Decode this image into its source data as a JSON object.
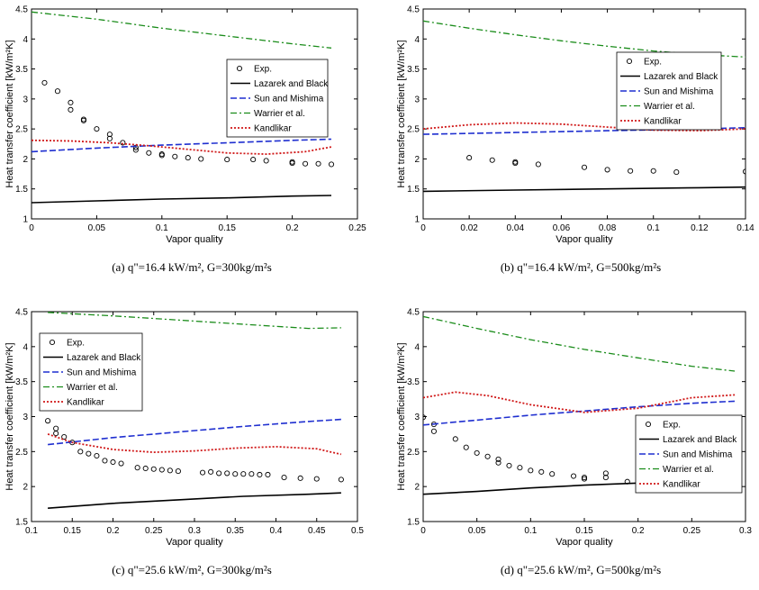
{
  "colors": {
    "exp": "#000000",
    "lazarek": "#000000",
    "sun": "#1f2fd0",
    "warrier": "#1a8c1a",
    "kandlikar": "#d01818"
  },
  "chart_data": [
    {
      "type": "line",
      "panel": "a",
      "caption": "(a)  q\"=16.4  kW/m², G=300kg/m²s",
      "xlabel": "Vapor quality",
      "ylabel": "Heat transfer coefficient [kW/m²K]",
      "xlim": [
        0,
        0.25
      ],
      "ylim": [
        1,
        4.5
      ],
      "xticks": [
        0,
        0.05,
        0.1,
        0.15,
        0.2,
        0.25
      ],
      "xtick_labels": [
        "0",
        "0.05",
        "0.1",
        "0.15",
        "0.2",
        "0.25"
      ],
      "yticks": [
        1,
        1.5,
        2,
        2.5,
        3,
        3.5,
        4,
        4.5
      ],
      "ytick_labels": [
        "1",
        "1.5",
        "2",
        "2.5",
        "3",
        "3.5",
        "4",
        "4.5"
      ],
      "legend_position": "right-middle",
      "series": [
        {
          "name": "Exp.",
          "style": "markers",
          "x": [
            0.01,
            0.02,
            0.03,
            0.03,
            0.04,
            0.04,
            0.05,
            0.06,
            0.06,
            0.07,
            0.08,
            0.08,
            0.09,
            0.1,
            0.1,
            0.11,
            0.12,
            0.13,
            0.15,
            0.17,
            0.18,
            0.2,
            0.2,
            0.21,
            0.22,
            0.23
          ],
          "y": [
            3.27,
            3.13,
            2.94,
            2.82,
            2.66,
            2.64,
            2.5,
            2.41,
            2.34,
            2.27,
            2.19,
            2.15,
            2.1,
            2.08,
            2.06,
            2.04,
            2.02,
            2.0,
            1.99,
            1.99,
            1.97,
            1.95,
            1.93,
            1.92,
            1.92,
            1.91
          ]
        },
        {
          "name": "Lazarek and Black",
          "style": "solid",
          "x": [
            0,
            0.05,
            0.1,
            0.15,
            0.2,
            0.23
          ],
          "y": [
            1.27,
            1.3,
            1.33,
            1.35,
            1.38,
            1.39
          ]
        },
        {
          "name": "Sun and Mishima",
          "style": "dashed",
          "x": [
            0,
            0.05,
            0.1,
            0.15,
            0.2,
            0.23
          ],
          "y": [
            2.12,
            2.18,
            2.23,
            2.27,
            2.31,
            2.33
          ]
        },
        {
          "name": "Warrier et al.",
          "style": "dashdot",
          "x": [
            0,
            0.05,
            0.1,
            0.15,
            0.2,
            0.23
          ],
          "y": [
            4.45,
            4.33,
            4.18,
            4.05,
            3.92,
            3.85
          ]
        },
        {
          "name": "Kandlikar",
          "style": "dotted",
          "x": [
            0,
            0.03,
            0.06,
            0.09,
            0.12,
            0.15,
            0.18,
            0.21,
            0.23
          ],
          "y": [
            2.31,
            2.3,
            2.27,
            2.22,
            2.16,
            2.1,
            2.08,
            2.12,
            2.2
          ]
        }
      ]
    },
    {
      "type": "line",
      "panel": "b",
      "caption": "(b)  q\"=16.4  kW/m², G=500kg/m²s",
      "xlabel": "Vapor quality",
      "ylabel": "Heat transfer coefficient [kW/m²K]",
      "xlim": [
        0,
        0.14
      ],
      "ylim": [
        1,
        4.5
      ],
      "xticks": [
        0,
        0.02,
        0.04,
        0.06,
        0.08,
        0.1,
        0.12,
        0.14
      ],
      "xtick_labels": [
        "0",
        "0.02",
        "0.04",
        "0.06",
        "0.08",
        "0.1",
        "0.12",
        "0.14"
      ],
      "yticks": [
        1,
        1.5,
        2,
        2.5,
        3,
        3.5,
        4,
        4.5
      ],
      "ytick_labels": [
        "1",
        "1.5",
        "2",
        "2.5",
        "3",
        "3.5",
        "4",
        "4.5"
      ],
      "legend_position": "right-upper",
      "series": [
        {
          "name": "Exp.",
          "style": "markers",
          "x": [
            0.02,
            0.03,
            0.04,
            0.04,
            0.05,
            0.07,
            0.08,
            0.09,
            0.1,
            0.11,
            0.14
          ],
          "y": [
            2.02,
            1.98,
            1.93,
            1.95,
            1.91,
            1.86,
            1.82,
            1.8,
            1.8,
            1.78,
            1.79
          ]
        },
        {
          "name": "Lazarek and Black",
          "style": "solid",
          "x": [
            0,
            0.04,
            0.08,
            0.12,
            0.14
          ],
          "y": [
            1.46,
            1.48,
            1.5,
            1.52,
            1.53
          ]
        },
        {
          "name": "Sun and Mishima",
          "style": "dashed",
          "x": [
            0,
            0.04,
            0.08,
            0.12,
            0.14
          ],
          "y": [
            2.41,
            2.44,
            2.47,
            2.5,
            2.52
          ]
        },
        {
          "name": "Warrier et al.",
          "style": "dashdot",
          "x": [
            0,
            0.02,
            0.04,
            0.06,
            0.08,
            0.1,
            0.12,
            0.14
          ],
          "y": [
            4.3,
            4.18,
            4.07,
            3.97,
            3.88,
            3.8,
            3.74,
            3.7
          ]
        },
        {
          "name": "Kandlikar",
          "style": "dotted",
          "x": [
            0,
            0.02,
            0.04,
            0.06,
            0.08,
            0.1,
            0.12,
            0.14
          ],
          "y": [
            2.5,
            2.57,
            2.6,
            2.58,
            2.53,
            2.48,
            2.47,
            2.5
          ]
        }
      ]
    },
    {
      "type": "line",
      "panel": "c",
      "caption": "(c)  q\"=25.6  kW/m², G=300kg/m²s",
      "xlabel": "Vapor quality",
      "ylabel": "Heat transfer coefficient [kW/m²K]",
      "xlim": [
        0.1,
        0.5
      ],
      "ylim": [
        1.5,
        4.5
      ],
      "xticks": [
        0.1,
        0.15,
        0.2,
        0.25,
        0.3,
        0.35,
        0.4,
        0.45,
        0.5
      ],
      "xtick_labels": [
        "0.1",
        "0.15",
        "0.2",
        "0.25",
        "0.3",
        "0.35",
        "0.4",
        "0.45",
        "0.5"
      ],
      "yticks": [
        1.5,
        2,
        2.5,
        3,
        3.5,
        4,
        4.5
      ],
      "ytick_labels": [
        "1.5",
        "2",
        "2.5",
        "3",
        "3.5",
        "4",
        "4.5"
      ],
      "legend_position": "left-upper",
      "series": [
        {
          "name": "Exp.",
          "style": "markers",
          "x": [
            0.12,
            0.13,
            0.13,
            0.14,
            0.15,
            0.16,
            0.17,
            0.18,
            0.19,
            0.2,
            0.21,
            0.23,
            0.24,
            0.25,
            0.26,
            0.27,
            0.28,
            0.31,
            0.32,
            0.33,
            0.34,
            0.35,
            0.36,
            0.37,
            0.38,
            0.39,
            0.41,
            0.43,
            0.45,
            0.48
          ],
          "y": [
            2.94,
            2.83,
            2.76,
            2.71,
            2.63,
            2.5,
            2.47,
            2.44,
            2.37,
            2.35,
            2.33,
            2.27,
            2.26,
            2.25,
            2.24,
            2.23,
            2.22,
            2.2,
            2.21,
            2.19,
            2.19,
            2.18,
            2.18,
            2.18,
            2.17,
            2.17,
            2.13,
            2.12,
            2.11,
            2.1
          ]
        },
        {
          "name": "Lazarek and Black",
          "style": "solid",
          "x": [
            0.12,
            0.2,
            0.28,
            0.36,
            0.44,
            0.48
          ],
          "y": [
            1.69,
            1.76,
            1.81,
            1.86,
            1.89,
            1.91
          ]
        },
        {
          "name": "Sun and Mishima",
          "style": "dashed",
          "x": [
            0.12,
            0.2,
            0.28,
            0.36,
            0.44,
            0.48
          ],
          "y": [
            2.6,
            2.7,
            2.78,
            2.86,
            2.93,
            2.96
          ]
        },
        {
          "name": "Warrier et al.",
          "style": "dashdot",
          "x": [
            0.12,
            0.2,
            0.28,
            0.36,
            0.44,
            0.48
          ],
          "y": [
            4.49,
            4.44,
            4.38,
            4.32,
            4.26,
            4.27
          ]
        },
        {
          "name": "Kandlikar",
          "style": "dotted",
          "x": [
            0.12,
            0.15,
            0.2,
            0.25,
            0.3,
            0.35,
            0.4,
            0.45,
            0.48
          ],
          "y": [
            2.75,
            2.63,
            2.53,
            2.49,
            2.51,
            2.55,
            2.57,
            2.54,
            2.46
          ]
        }
      ]
    },
    {
      "type": "line",
      "panel": "d",
      "caption": "(d)  q\"=25.6  kW/m², G=500kg/m²s",
      "xlabel": "Vapor quality",
      "ylabel": "Heat transfer coefficient [kW/m²K]",
      "xlim": [
        0,
        0.3
      ],
      "ylim": [
        1.5,
        4.5
      ],
      "xticks": [
        0,
        0.05,
        0.1,
        0.15,
        0.2,
        0.25,
        0.3
      ],
      "xtick_labels": [
        "0",
        "0.05",
        "0.1",
        "0.15",
        "0.2",
        "0.25",
        "0.3"
      ],
      "yticks": [
        1.5,
        2,
        2.5,
        3,
        3.5,
        4,
        4.5
      ],
      "ytick_labels": [
        "1.5",
        "2",
        "2.5",
        "3",
        "3.5",
        "4",
        "4.5"
      ],
      "legend_position": "right-middle",
      "series": [
        {
          "name": "Exp.",
          "style": "markers",
          "x": [
            0,
            0.01,
            0.01,
            0.03,
            0.04,
            0.05,
            0.06,
            0.07,
            0.07,
            0.08,
            0.09,
            0.1,
            0.11,
            0.12,
            0.14,
            0.15,
            0.15,
            0.17,
            0.17,
            0.19,
            0.2,
            0.22,
            0.22,
            0.23,
            0.23,
            0.25,
            0.26,
            0.27,
            0.27,
            0.28,
            0.29
          ],
          "y": [
            2.99,
            2.89,
            2.79,
            2.68,
            2.56,
            2.48,
            2.43,
            2.39,
            2.34,
            2.3,
            2.27,
            2.23,
            2.21,
            2.18,
            2.15,
            2.13,
            2.11,
            2.19,
            2.13,
            2.07,
            2.05,
            2.06,
            2.05,
            2.04,
            2.05,
            2.03,
            2.02,
            2.01,
            2.03,
            2.0,
            1.98
          ]
        },
        {
          "name": "Lazarek and Black",
          "style": "solid",
          "x": [
            0,
            0.05,
            0.1,
            0.15,
            0.2,
            0.25,
            0.29
          ],
          "y": [
            1.89,
            1.93,
            1.98,
            2.02,
            2.05,
            2.07,
            2.09
          ]
        },
        {
          "name": "Sun and Mishima",
          "style": "dashed",
          "x": [
            0,
            0.05,
            0.1,
            0.15,
            0.2,
            0.25,
            0.29
          ],
          "y": [
            2.88,
            2.95,
            3.02,
            3.08,
            3.14,
            3.19,
            3.22
          ]
        },
        {
          "name": "Warrier et al.",
          "style": "dashdot",
          "x": [
            0,
            0.05,
            0.1,
            0.15,
            0.2,
            0.25,
            0.29
          ],
          "y": [
            4.43,
            4.26,
            4.1,
            3.96,
            3.84,
            3.72,
            3.65
          ]
        },
        {
          "name": "Kandlikar",
          "style": "dotted",
          "x": [
            0,
            0.03,
            0.06,
            0.1,
            0.15,
            0.2,
            0.25,
            0.29
          ],
          "y": [
            3.27,
            3.35,
            3.3,
            3.17,
            3.06,
            3.12,
            3.27,
            3.31
          ]
        }
      ]
    }
  ]
}
